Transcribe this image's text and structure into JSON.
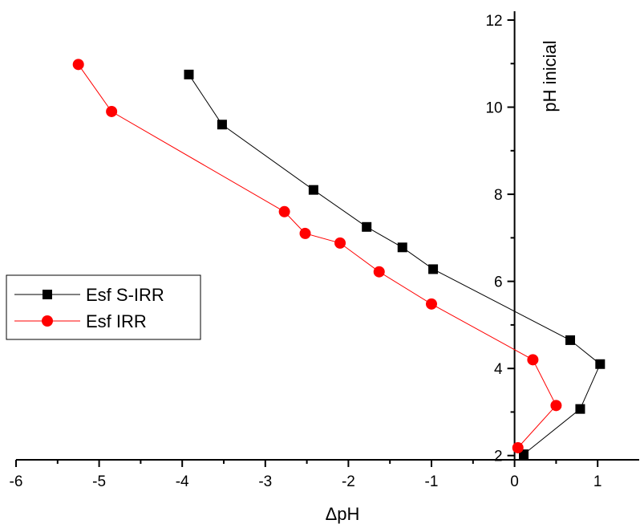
{
  "chart_data": {
    "type": "scatter",
    "xlabel": "ΔpH",
    "ylabel": "pH inicial",
    "xlim": [
      -6,
      1.5
    ],
    "ylim": [
      1,
      12
    ],
    "x_ticks": [
      "-6",
      "-5",
      "-4",
      "-3",
      "-2",
      "-1",
      "0",
      "1"
    ],
    "y_ticks": [
      "2",
      "4",
      "6",
      "8",
      "10",
      "12"
    ],
    "grid": false,
    "legend_position": "middle-left",
    "series": [
      {
        "name": "Esf S-IRR",
        "color": "#000000",
        "marker": "square",
        "x": [
          -3.92,
          -3.52,
          -2.42,
          -1.78,
          -1.35,
          -0.98,
          0.67,
          1.03,
          0.79,
          0.11
        ],
        "y": [
          10.75,
          9.6,
          8.1,
          7.25,
          6.78,
          6.28,
          4.65,
          4.1,
          3.07,
          2.03
        ]
      },
      {
        "name": "Esf IRR",
        "color": "#ff0000",
        "marker": "circle",
        "x": [
          -5.25,
          -4.85,
          -2.77,
          -2.52,
          -2.1,
          -1.63,
          -1.0,
          0.22,
          0.5,
          0.04
        ],
        "y": [
          10.98,
          9.9,
          7.6,
          7.1,
          6.88,
          6.22,
          5.48,
          4.2,
          3.15,
          2.18
        ]
      }
    ]
  }
}
